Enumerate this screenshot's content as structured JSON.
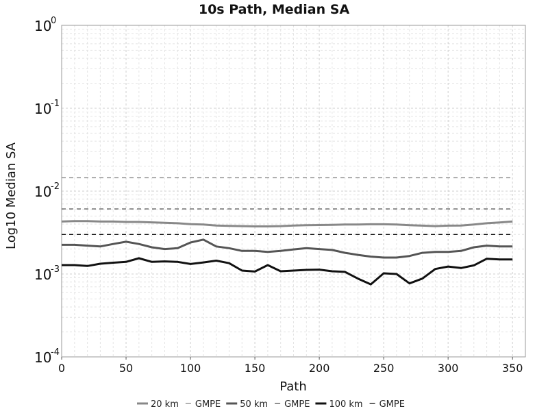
{
  "chart_data": {
    "type": "line",
    "title": "10s Path, Median SA",
    "xlabel": "Path",
    "ylabel": "Log10 Median SA",
    "yscale": "log",
    "xlim": [
      0,
      360
    ],
    "ylim": [
      0.0001,
      1
    ],
    "grid": true,
    "legend_position": "bottom",
    "x_ticks": [
      "0",
      "50",
      "100",
      "150",
      "200",
      "250",
      "300",
      "350"
    ],
    "y_ticks": [
      {
        "base": "10",
        "exp": "-4",
        "value": 0.0001
      },
      {
        "base": "10",
        "exp": "-3",
        "value": 0.001
      },
      {
        "base": "10",
        "exp": "-2",
        "value": 0.01
      },
      {
        "base": "10",
        "exp": "-1",
        "value": 0.1
      },
      {
        "base": "10",
        "exp": "0",
        "value": 1
      }
    ],
    "x": [
      0,
      10,
      20,
      30,
      40,
      50,
      60,
      70,
      80,
      90,
      100,
      110,
      120,
      130,
      140,
      150,
      160,
      170,
      180,
      190,
      200,
      210,
      220,
      230,
      240,
      250,
      260,
      270,
      280,
      290,
      300,
      310,
      320,
      330,
      340,
      350
    ],
    "series": [
      {
        "name": "20 km",
        "style": "solid",
        "color": "#888888",
        "values": [
          0.0043,
          0.00435,
          0.00435,
          0.0043,
          0.0043,
          0.00425,
          0.00425,
          0.0042,
          0.00415,
          0.0041,
          0.004,
          0.00395,
          0.00385,
          0.0038,
          0.00378,
          0.00375,
          0.00375,
          0.00378,
          0.00385,
          0.00388,
          0.0039,
          0.00392,
          0.00395,
          0.00395,
          0.00398,
          0.00398,
          0.00395,
          0.00388,
          0.00383,
          0.00378,
          0.00383,
          0.00385,
          0.00395,
          0.0041,
          0.00418,
          0.0043
        ]
      },
      {
        "name": "GMPE",
        "style": "dashed",
        "color": "#888888",
        "values": [
          0.0145,
          0.0145,
          0.0145,
          0.0145,
          0.0145,
          0.0145,
          0.0145,
          0.0145,
          0.0145,
          0.0145,
          0.0145,
          0.0145,
          0.0145,
          0.0145,
          0.0145,
          0.0145,
          0.0145,
          0.0145,
          0.0145,
          0.0145,
          0.0145,
          0.0145,
          0.0145,
          0.0145,
          0.0145,
          0.0145,
          0.0145,
          0.0145,
          0.0145,
          0.0145,
          0.0145,
          0.0145,
          0.0145,
          0.0145,
          0.0145,
          0.0145
        ]
      },
      {
        "name": "50 km",
        "style": "solid",
        "color": "#555555",
        "values": [
          0.00225,
          0.00225,
          0.0022,
          0.00215,
          0.0023,
          0.00245,
          0.0023,
          0.0021,
          0.002,
          0.00205,
          0.0024,
          0.0026,
          0.00215,
          0.00205,
          0.0019,
          0.0019,
          0.00185,
          0.0019,
          0.00198,
          0.00205,
          0.002,
          0.00195,
          0.0018,
          0.0017,
          0.00162,
          0.00158,
          0.00158,
          0.00165,
          0.0018,
          0.00185,
          0.00185,
          0.0019,
          0.0021,
          0.0022,
          0.00215,
          0.00215
        ]
      },
      {
        "name": "GMPE",
        "style": "dashed",
        "color": "#555555",
        "values": [
          0.0061,
          0.0061,
          0.0061,
          0.0061,
          0.0061,
          0.0061,
          0.0061,
          0.0061,
          0.0061,
          0.0061,
          0.0061,
          0.0061,
          0.0061,
          0.0061,
          0.0061,
          0.0061,
          0.0061,
          0.0061,
          0.0061,
          0.0061,
          0.0061,
          0.0061,
          0.0061,
          0.0061,
          0.0061,
          0.0061,
          0.0061,
          0.0061,
          0.0061,
          0.0061,
          0.0061,
          0.0061,
          0.0061,
          0.0061,
          0.0061,
          0.0061
        ]
      },
      {
        "name": "100 km",
        "style": "solid",
        "color": "#111111",
        "values": [
          0.00128,
          0.00128,
          0.00125,
          0.00133,
          0.00137,
          0.0014,
          0.00155,
          0.0014,
          0.00142,
          0.0014,
          0.00132,
          0.00138,
          0.00145,
          0.00135,
          0.0011,
          0.00107,
          0.00128,
          0.00108,
          0.0011,
          0.00112,
          0.00113,
          0.00108,
          0.00106,
          0.00088,
          0.00075,
          0.00102,
          0.001,
          0.00077,
          0.00088,
          0.00115,
          0.00123,
          0.00118,
          0.00127,
          0.00153,
          0.0015,
          0.0015
        ]
      },
      {
        "name": "GMPE",
        "style": "dashed",
        "color": "#111111",
        "values": [
          0.003,
          0.003,
          0.003,
          0.003,
          0.003,
          0.003,
          0.003,
          0.003,
          0.003,
          0.003,
          0.003,
          0.003,
          0.003,
          0.003,
          0.003,
          0.003,
          0.003,
          0.003,
          0.003,
          0.003,
          0.003,
          0.003,
          0.003,
          0.003,
          0.003,
          0.003,
          0.003,
          0.003,
          0.003,
          0.003,
          0.003,
          0.003,
          0.003,
          0.003,
          0.003,
          0.003
        ]
      }
    ]
  }
}
